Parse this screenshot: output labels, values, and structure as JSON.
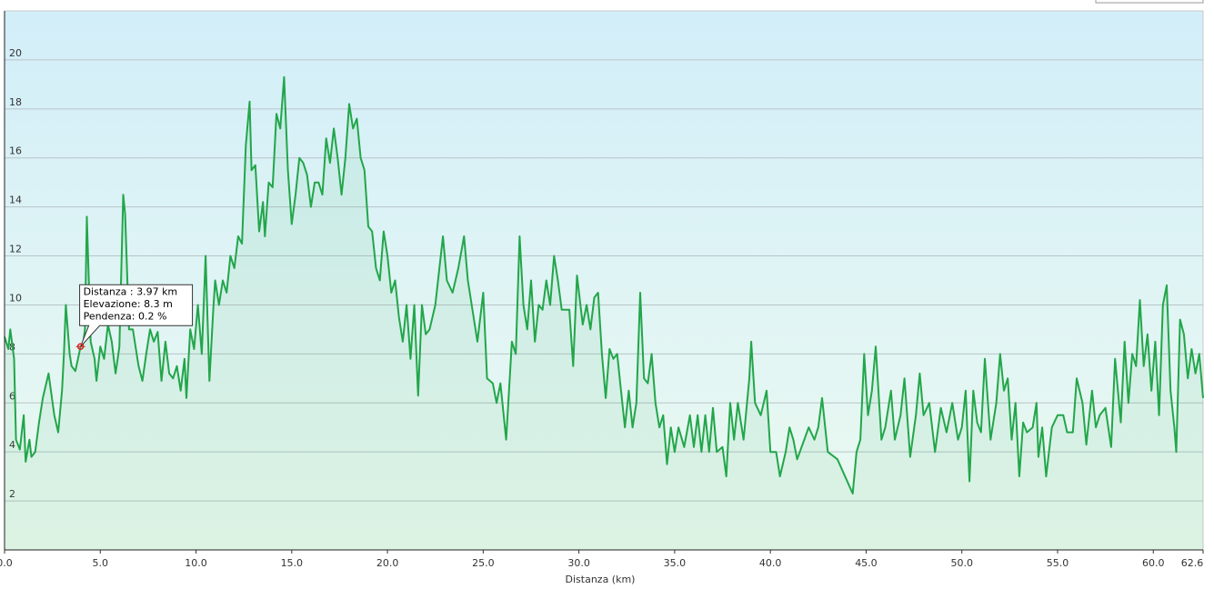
{
  "chart_data": {
    "type": "line",
    "xlabel": "Distanza  (km)",
    "xlim": [
      0,
      62.6
    ],
    "ylim": [
      0,
      22
    ],
    "xticks": [
      {
        "value": 0,
        "label": "0.0"
      },
      {
        "value": 5,
        "label": "5.0"
      },
      {
        "value": 10,
        "label": "10.0"
      },
      {
        "value": 15,
        "label": "15.0"
      },
      {
        "value": 20,
        "label": "20.0"
      },
      {
        "value": 25,
        "label": "25.0"
      },
      {
        "value": 30,
        "label": "30.0"
      },
      {
        "value": 35,
        "label": "35.0"
      },
      {
        "value": 40,
        "label": "40.0"
      },
      {
        "value": 45,
        "label": "45.0"
      },
      {
        "value": 50,
        "label": "50.0"
      },
      {
        "value": 55,
        "label": "55.0"
      },
      {
        "value": 60,
        "label": "60.0"
      },
      62.6
    ],
    "yticks": [
      2,
      4,
      6,
      8,
      10,
      12,
      14,
      16,
      18,
      20
    ],
    "grid": true,
    "highlight": {
      "x": 3.97,
      "y": 8.3,
      "lines": [
        "Distanza : 3.97 km",
        "Elevazione: 8.3 m",
        "Pendenza: 0.2 %"
      ]
    },
    "x": [
      0,
      0.2,
      0.3,
      0.5,
      0.6,
      0.8,
      1.0,
      1.1,
      1.3,
      1.4,
      1.6,
      1.8,
      2.0,
      2.3,
      2.6,
      2.8,
      3.0,
      3.1,
      3.2,
      3.4,
      3.5,
      3.7,
      3.97,
      4.1,
      4.2,
      4.3,
      4.5,
      4.7,
      4.8,
      5.0,
      5.2,
      5.4,
      5.6,
      5.8,
      6.0,
      6.2,
      6.3,
      6.5,
      6.7,
      6.9,
      7.0,
      7.2,
      7.4,
      7.6,
      7.8,
      8.0,
      8.2,
      8.4,
      8.6,
      8.8,
      9.0,
      9.2,
      9.4,
      9.5,
      9.7,
      9.9,
      10.1,
      10.3,
      10.5,
      10.7,
      10.9,
      11.0,
      11.2,
      11.4,
      11.6,
      11.8,
      12.0,
      12.2,
      12.4,
      12.6,
      12.8,
      12.9,
      13.1,
      13.3,
      13.5,
      13.6,
      13.8,
      14.0,
      14.2,
      14.4,
      14.6,
      14.8,
      15.0,
      15.2,
      15.4,
      15.6,
      15.8,
      16.0,
      16.2,
      16.4,
      16.6,
      16.8,
      17.0,
      17.2,
      17.4,
      17.6,
      17.8,
      18.0,
      18.2,
      18.4,
      18.6,
      18.8,
      19.0,
      19.2,
      19.4,
      19.6,
      19.8,
      20.0,
      20.2,
      20.4,
      20.6,
      20.8,
      21.0,
      21.2,
      21.4,
      21.6,
      21.8,
      22.0,
      22.2,
      22.5,
      22.9,
      23.1,
      23.4,
      23.7,
      24.0,
      24.2,
      24.5,
      24.7,
      25.0,
      25.2,
      25.5,
      25.7,
      25.9,
      26.2,
      26.5,
      26.7,
      26.9,
      27.1,
      27.3,
      27.5,
      27.7,
      27.9,
      28.1,
      28.3,
      28.5,
      28.7,
      28.9,
      29.1,
      29.5,
      29.7,
      29.9,
      30.2,
      30.4,
      30.6,
      30.8,
      31.0,
      31.2,
      31.4,
      31.6,
      31.8,
      32.0,
      32.2,
      32.4,
      32.6,
      32.8,
      33.0,
      33.2,
      33.4,
      33.6,
      33.8,
      34.0,
      34.2,
      34.4,
      34.6,
      34.8,
      35.0,
      35.2,
      35.5,
      35.8,
      36.0,
      36.2,
      36.4,
      36.6,
      36.8,
      37.0,
      37.2,
      37.5,
      37.7,
      37.9,
      38.1,
      38.3,
      38.6,
      38.9,
      39.0,
      39.2,
      39.5,
      39.8,
      40.0,
      40.3,
      40.5,
      40.8,
      41.0,
      41.2,
      41.4,
      42.0,
      42.3,
      42.5,
      42.7,
      43.0,
      43.5,
      44.3,
      44.5,
      44.7,
      44.9,
      45.1,
      45.3,
      45.5,
      45.8,
      46.0,
      46.3,
      46.5,
      46.8,
      47.0,
      47.3,
      47.6,
      47.8,
      48.0,
      48.3,
      48.6,
      48.9,
      49.2,
      49.5,
      49.8,
      50.0,
      50.2,
      50.4,
      50.6,
      50.8,
      51.0,
      51.2,
      51.5,
      51.8,
      52.0,
      52.2,
      52.4,
      52.6,
      52.8,
      53.0,
      53.2,
      53.4,
      53.7,
      53.9,
      54.0,
      54.2,
      54.4,
      54.7,
      55.0,
      55.3,
      55.5,
      55.8,
      56.0,
      56.3,
      56.5,
      56.8,
      57.0,
      57.2,
      57.5,
      57.8,
      58.0,
      58.3,
      58.5,
      58.7,
      58.9,
      59.1,
      59.3,
      59.5,
      59.7,
      59.9,
      60.1,
      60.3,
      60.5,
      60.7,
      60.9,
      61.1,
      61.2,
      61.4,
      61.6,
      61.8,
      62.0,
      62.2,
      62.4,
      62.6
    ],
    "series": [
      {
        "color": "#22a64a",
        "values": [
          8.7,
          8.2,
          9,
          7.8,
          4.5,
          4.1,
          5.5,
          3.6,
          4.5,
          3.8,
          4,
          5.2,
          6.2,
          7.2,
          5.5,
          4.8,
          6.5,
          8,
          10,
          8,
          7.5,
          7.3,
          8.3,
          8.4,
          9,
          13.6,
          8.5,
          7.8,
          6.9,
          8.3,
          7.8,
          9.2,
          8.5,
          7.2,
          8.3,
          14.5,
          13.7,
          9,
          9,
          8,
          7.5,
          6.9,
          8,
          9,
          8.5,
          8.9,
          6.9,
          8.5,
          7.2,
          7,
          7.5,
          6.5,
          7.8,
          6.2,
          9,
          8.2,
          10,
          8,
          12,
          6.9,
          9.8,
          11,
          10,
          11,
          10.5,
          12,
          11.5,
          12.8,
          12.5,
          16.5,
          18.3,
          15.5,
          15.7,
          13,
          14.2,
          12.8,
          15,
          14.8,
          17.8,
          17.2,
          19.3,
          15.5,
          13.3,
          14.5,
          16,
          15.8,
          15.3,
          14,
          15,
          15,
          14.5,
          16.8,
          15.8,
          17.2,
          16,
          14.5,
          16,
          18.2,
          17.2,
          17.6,
          16,
          15.5,
          13.2,
          13,
          11.5,
          11,
          13,
          12,
          10.5,
          11,
          9.5,
          8.5,
          10,
          7.8,
          10,
          6.3,
          10,
          8.8,
          9,
          10,
          12.8,
          11,
          10.5,
          11.5,
          12.8,
          11,
          9.5,
          8.5,
          10.5,
          7,
          6.8,
          6,
          6.8,
          4.5,
          8.5,
          8,
          12.8,
          10,
          9,
          11,
          8.5,
          10,
          9.8,
          11,
          10,
          12,
          11,
          9.8,
          9.8,
          7.5,
          11.2,
          9.2,
          10,
          9,
          10.3,
          10.5,
          8,
          6.2,
          8.2,
          7.8,
          8,
          6.5,
          5,
          6.5,
          5,
          6,
          10.5,
          7,
          6.8,
          8,
          6,
          5,
          5.5,
          3.5,
          5,
          4,
          5,
          4.2,
          5.5,
          4.2,
          5.5,
          4,
          5.5,
          4,
          5.8,
          4,
          4.2,
          3,
          6,
          4.5,
          6,
          4.5,
          7,
          8.5,
          6,
          5.5,
          6.5,
          4,
          4,
          3,
          4,
          5,
          4.5,
          3.7,
          5,
          4.5,
          5,
          6.2,
          4,
          3.7,
          2.3,
          4,
          4.5,
          8,
          5.5,
          6.5,
          8.3,
          4.5,
          5,
          6.5,
          4.5,
          5.5,
          7,
          3.8,
          5.5,
          7.2,
          5.5,
          6,
          4,
          5.8,
          4.8,
          6,
          4.5,
          5,
          6.5,
          2.8,
          6.5,
          5.2,
          4.8,
          7.8,
          4.5,
          6,
          8,
          6.5,
          7,
          4.5,
          6,
          3,
          5.2,
          4.8,
          5,
          6,
          3.8,
          5,
          3,
          5,
          5.5,
          5.5,
          4.8,
          4.8,
          7,
          6,
          4.3,
          6.5,
          5,
          5.5,
          5.8,
          4.2,
          7.8,
          5.2,
          8.5,
          6,
          8,
          7.5,
          10.2,
          7.5,
          8.8,
          6.5,
          8.5,
          5.5,
          10,
          10.8,
          6.5,
          5,
          4,
          9.4,
          8.8,
          7,
          8.2,
          7.2,
          8,
          6.2
        ]
      }
    ]
  }
}
